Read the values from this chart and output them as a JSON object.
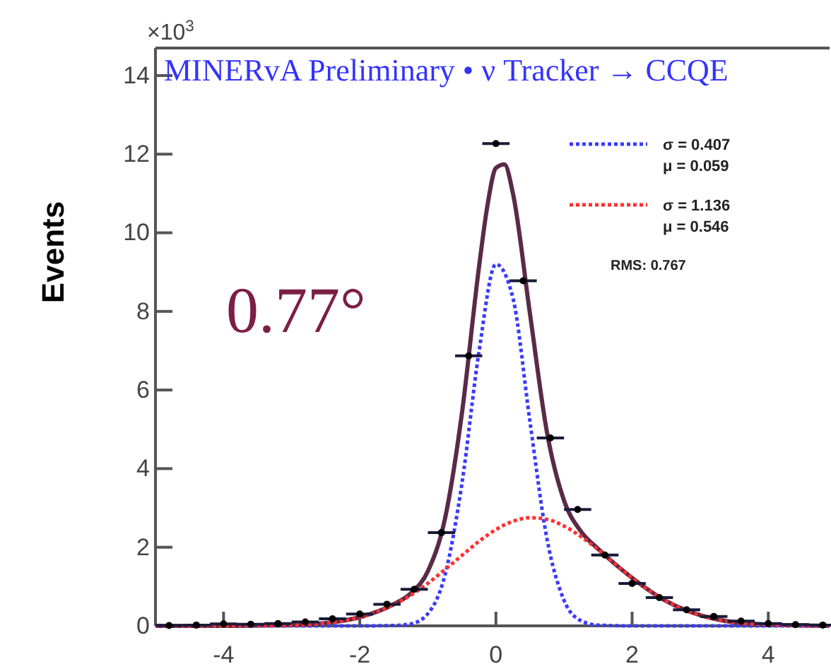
{
  "chart_data": {
    "type": "scatter",
    "title": "MINERvA Preliminary • ν Tracker → CCQE",
    "ylabel": "Events",
    "xlim": [
      -5,
      4.9
    ],
    "xticks": [
      -4,
      -2,
      0,
      2,
      4
    ],
    "ylim": [
      0,
      14.7
    ],
    "yticks": [
      0,
      2,
      4,
      6,
      8,
      10,
      12,
      14
    ],
    "legend": "top right",
    "grid": false,
    "annotations": [
      "×10$^{3}$",
      "RMS: 0.767",
      "0.77°"
    ],
    "series": [
      {
        "type": "line",
        "color": "#5a2a48",
        "line_style": "solid",
        "x": [
          -5,
          -4,
          -3.5,
          -3,
          -2.5,
          -2,
          -1.5,
          -1.25,
          -1,
          -0.75,
          -0.5,
          -0.25,
          -0.125,
          0,
          0.125,
          0.25,
          0.5,
          0.75,
          1,
          1.25,
          1.5,
          2,
          2.5,
          3,
          3.5,
          4,
          4.5,
          4.9
        ],
        "values": [
          0,
          0,
          0.01,
          0.02,
          0.07,
          0.22,
          0.55,
          0.83,
          1.39,
          2.71,
          5.4,
          9.11,
          10.69,
          11.65,
          11.74,
          11.0,
          7.94,
          4.92,
          3.19,
          2.4,
          1.96,
          1.22,
          0.63,
          0.27,
          0.09,
          0.03,
          0.01,
          0
        ]
      },
      {
        "type": "line",
        "name": "σ = 0.407\nμ = 0.059",
        "color": "#3a3aff",
        "line_style": "dotted",
        "x": [
          -5,
          -2,
          -1.5,
          -1.25,
          -1,
          -0.75,
          -0.5,
          -0.25,
          0,
          0.25,
          0.5,
          0.75,
          1,
          1.25,
          1.5,
          2,
          4.9
        ],
        "values": [
          0,
          0,
          0.01,
          0.05,
          0.31,
          1.28,
          3.61,
          6.96,
          9.2,
          8.34,
          5.19,
          2.21,
          0.65,
          0.13,
          0.02,
          0,
          0
        ]
      },
      {
        "type": "line",
        "name": "σ = 1.136\nμ = 0.546",
        "color": "#ff3030",
        "line_style": "dotted",
        "x": [
          -5,
          -4,
          -3.5,
          -3,
          -2.5,
          -2,
          -1.5,
          -1.25,
          -1,
          -0.75,
          -0.5,
          -0.25,
          0,
          0.25,
          0.5,
          0.75,
          1,
          1.25,
          1.5,
          2,
          2.5,
          3,
          3.5,
          4,
          4.5,
          4.9
        ],
        "values": [
          0,
          0,
          0.01,
          0.02,
          0.07,
          0.22,
          0.54,
          0.78,
          1.08,
          1.43,
          1.79,
          2.15,
          2.45,
          2.66,
          2.75,
          2.71,
          2.54,
          2.27,
          1.94,
          1.22,
          0.63,
          0.27,
          0.09,
          0.03,
          0.01,
          0
        ]
      },
      {
        "color": "#000000",
        "marker": "circle",
        "x": [
          -4.8,
          -4.4,
          -4.0,
          -3.6,
          -3.2,
          -2.8,
          -2.4,
          -2.0,
          -1.6,
          -1.2,
          -0.8,
          -0.4,
          0,
          0.4,
          0.8,
          1.2,
          1.6,
          2.0,
          2.4,
          2.8,
          3.2,
          3.6,
          4.0,
          4.4,
          4.8
        ],
        "values": [
          0.01,
          0.02,
          0.05,
          0.04,
          0.06,
          0.1,
          0.18,
          0.3,
          0.55,
          0.93,
          2.37,
          6.87,
          12.27,
          8.78,
          4.78,
          2.96,
          1.8,
          1.08,
          0.72,
          0.41,
          0.24,
          0.12,
          0.06,
          0.03,
          0.02
        ],
        "xerrors": [
          0.2,
          0.2,
          0.2,
          0.2,
          0.2,
          0.2,
          0.2,
          0.2,
          0.2,
          0.2,
          0.2,
          0.2,
          0.2,
          0.2,
          0.2,
          0.2,
          0.2,
          0.2,
          0.2,
          0.2,
          0.2,
          0.2,
          0.2,
          0.2,
          0.2
        ]
      }
    ]
  }
}
